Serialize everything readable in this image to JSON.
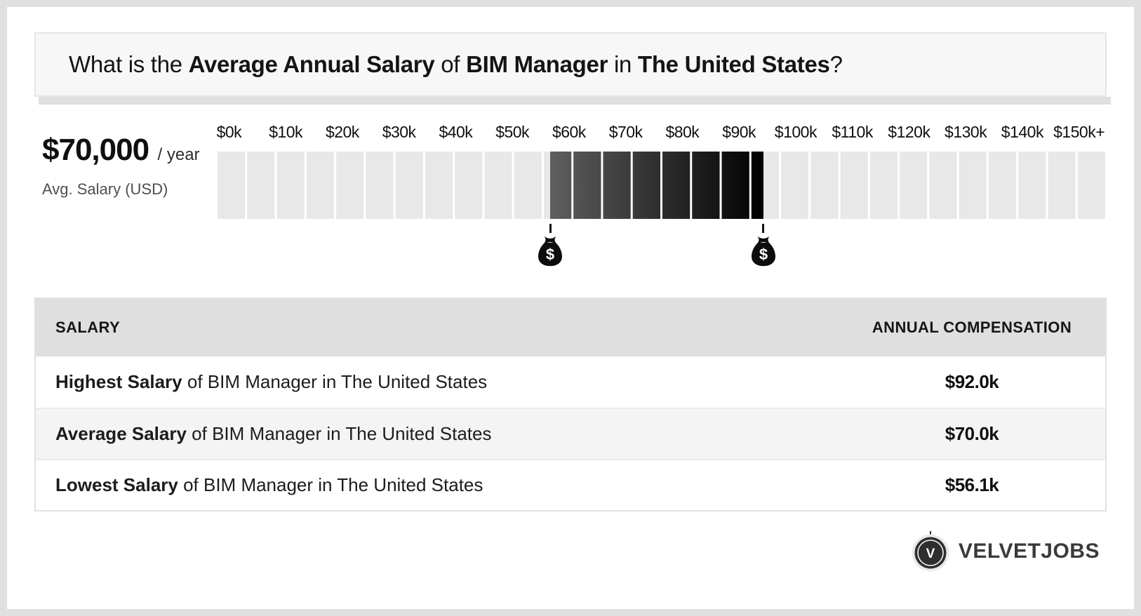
{
  "header": {
    "title_parts": [
      {
        "text": "What is the ",
        "bold": false
      },
      {
        "text": "Average Annual Salary",
        "bold": true
      },
      {
        "text": " of ",
        "bold": false
      },
      {
        "text": "BIM Manager",
        "bold": true
      },
      {
        "text": " in ",
        "bold": false
      },
      {
        "text": "The United States",
        "bold": true
      },
      {
        "text": "?",
        "bold": false
      }
    ]
  },
  "salary_summary": {
    "amount": "$70,000",
    "per": "/ year",
    "caption": "Avg. Salary (USD)"
  },
  "chart_data": {
    "type": "range-scale",
    "axis_ticks": [
      "$0k",
      "$10k",
      "$20k",
      "$30k",
      "$40k",
      "$50k",
      "$60k",
      "$70k",
      "$80k",
      "$90k",
      "$100k",
      "$110k",
      "$120k",
      "$130k",
      "$140k",
      "$150k+"
    ],
    "axis_min_k": 0,
    "axis_max_k": 150,
    "segment_count": 30,
    "highlight_range_k": {
      "min": 56.1,
      "max": 92.0
    },
    "average_k": 70.0,
    "markers": [
      {
        "name": "lowest-salary",
        "value_k": 56.1
      },
      {
        "name": "highest-salary",
        "value_k": 92.0
      }
    ],
    "colors": {
      "segment": "#e8e8e8",
      "highlight_start": "#5f5f5f",
      "highlight_end": "#000000",
      "marker": "#141414"
    },
    "legend_position": "none",
    "grid": false
  },
  "table": {
    "headers": [
      "SALARY",
      "ANNUAL COMPENSATION"
    ],
    "rows": [
      {
        "term": "Highest Salary",
        "rest": " of BIM Manager in The United States",
        "value": "$92.0k"
      },
      {
        "term": "Average Salary",
        "rest": " of BIM Manager in The United States",
        "value": "$70.0k"
      },
      {
        "term": "Lowest Salary",
        "rest": " of BIM Manager in The United States",
        "value": "$56.1k"
      }
    ]
  },
  "footer": {
    "brand": "VELVETJOBS",
    "logo_letter": "V"
  }
}
